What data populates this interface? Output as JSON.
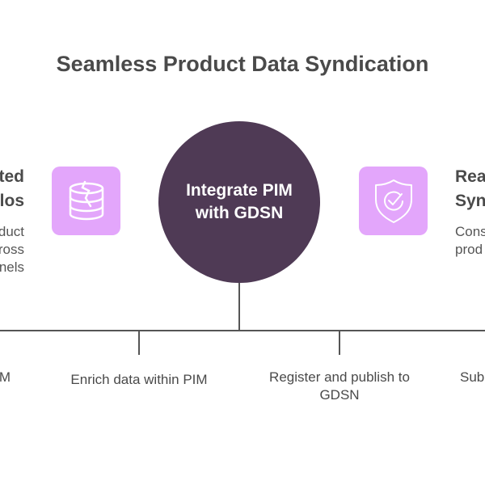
{
  "title": "Seamless Product Data Syndication",
  "center": {
    "line1": "Integrate PIM",
    "line2": "with GDSN"
  },
  "left": {
    "title_lines": [
      "ted",
      "los"
    ],
    "desc_lines": [
      "duct",
      "ross",
      "nels"
    ],
    "icon": "cracked-database-icon"
  },
  "right": {
    "title_lines": [
      "Rea",
      "Syn"
    ],
    "desc_lines": [
      "Cons",
      "prod"
    ],
    "icon": "shield-check-icon"
  },
  "steps": [
    "M",
    "Enrich data within PIM",
    "Register and publish to GDSN",
    "Sub"
  ],
  "colors": {
    "circle": "#4f3a55",
    "icon_bg": "#e3a6fb",
    "line": "#555555",
    "text": "#4a4a4a"
  }
}
